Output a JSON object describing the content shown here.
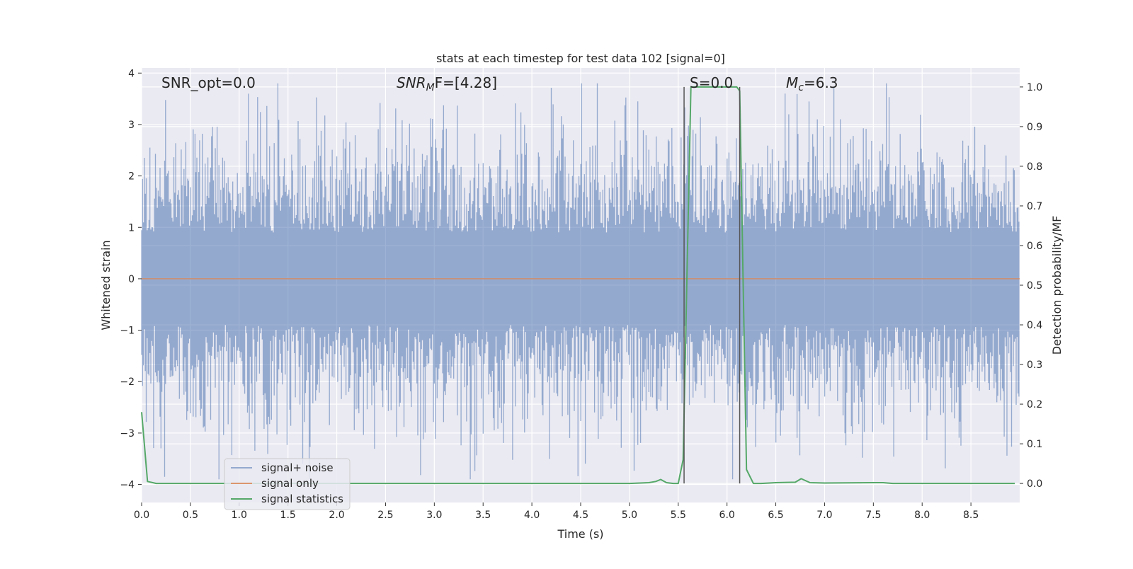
{
  "chart_data": {
    "type": "line",
    "title": "stats at each timestep for test data 102 [signal=0]",
    "xlabel": "Time (s)",
    "ylabel_left": "Whitened strain",
    "ylabel_right": "Detection probability/MF",
    "xlim": [
      0.0,
      9.0
    ],
    "ylim_left": [
      -4.35,
      4.1
    ],
    "ylim_right": [
      -0.048,
      1.048
    ],
    "x_ticks": [
      "0.0",
      "0.5",
      "1.0",
      "1.5",
      "2.0",
      "2.5",
      "3.0",
      "3.5",
      "4.0",
      "4.5",
      "5.0",
      "5.5",
      "6.0",
      "6.5",
      "7.0",
      "7.5",
      "8.0",
      "8.5"
    ],
    "y_left_ticks": [
      "4",
      "3",
      "2",
      "1",
      "0",
      "−1",
      "−2",
      "−3",
      "−4"
    ],
    "y_right_ticks": [
      "1.0",
      "0.9",
      "0.8",
      "0.7",
      "0.6",
      "0.5",
      "0.4",
      "0.3",
      "0.2",
      "0.1",
      "0.0"
    ],
    "grid": true,
    "legend_position": "lower-left",
    "annotations": {
      "snr_opt": "SNR_opt=0.0",
      "snr_mf_base": "SNR",
      "snr_mf_sub": "M",
      "snr_mf_rest": "F=[4.28]",
      "s_value": "S=0.0",
      "mc_base": "M",
      "mc_sub": "c",
      "mc_rest": "=6.3"
    },
    "series": [
      {
        "name": "signal+ noise",
        "axis": "left",
        "color": "#4c72b0",
        "description_values": "whitened noise, roughly within [-4, 3.8]"
      },
      {
        "name": "signal only",
        "axis": "left",
        "color": "#dd8452",
        "x": [
          0.0,
          9.0
        ],
        "y": [
          0.0,
          0.0
        ]
      },
      {
        "name": "signal statistics",
        "axis": "right",
        "color": "#55a868",
        "x": [
          0.0,
          0.06,
          0.15,
          0.5,
          1.0,
          2.0,
          3.0,
          4.0,
          5.0,
          5.2,
          5.27,
          5.32,
          5.38,
          5.45,
          5.5,
          5.55,
          5.63,
          5.7,
          6.0,
          6.1,
          6.13,
          6.2,
          6.27,
          6.35,
          6.5,
          6.7,
          6.76,
          6.85,
          7.0,
          7.5,
          7.6,
          7.7,
          8.0,
          8.5,
          8.95
        ],
        "y": [
          0.18,
          0.005,
          0.0,
          0.0,
          0.0,
          0.0,
          0.0,
          0.0,
          0.0,
          0.002,
          0.005,
          0.01,
          0.002,
          0.0,
          0.0,
          0.06,
          1.0,
          1.0,
          1.0,
          1.0,
          0.99,
          0.035,
          0.0,
          0.0,
          0.002,
          0.003,
          0.012,
          0.002,
          0.001,
          0.002,
          0.002,
          0.0,
          0.0,
          0.0,
          0.0
        ]
      }
    ],
    "vlines": [
      {
        "x": 5.56,
        "color": "#555555"
      },
      {
        "x": 6.13,
        "color": "#555555"
      }
    ],
    "legend": [
      "signal+ noise",
      "signal only",
      "signal statistics"
    ]
  }
}
